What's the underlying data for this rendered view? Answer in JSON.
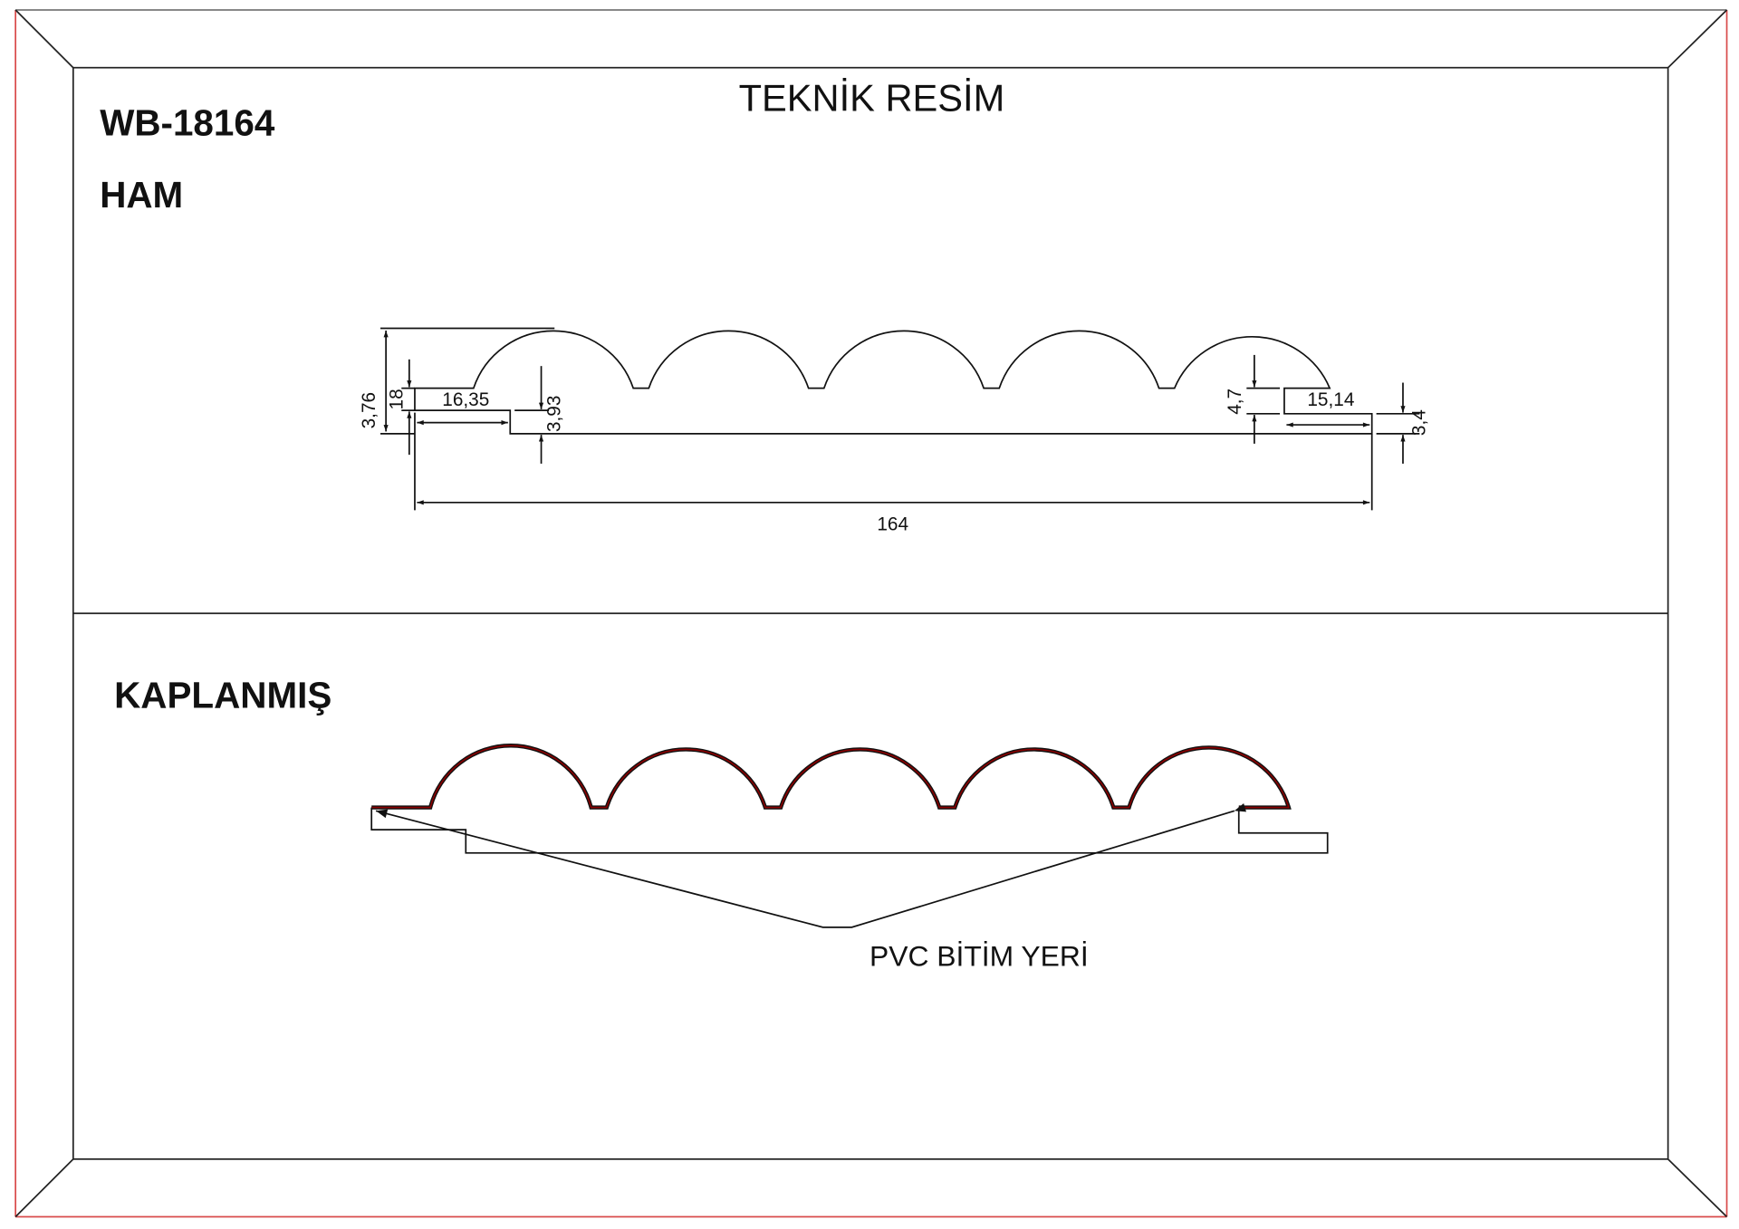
{
  "sheet": {
    "title": "TEKNİK RESİM",
    "product_code": "WB-18164",
    "frame_border_color": "#d94b4b"
  },
  "raw_section": {
    "label": "HAM",
    "dimensions": {
      "total_height": "3,76",
      "left_tongue_thickness": "18",
      "left_tongue_length": "16,35",
      "left_base_height": "3,93",
      "right_groove_height": "4,7",
      "right_lip_length": "15,14",
      "right_lip_height": "3,4",
      "total_width": "164"
    }
  },
  "coated_section": {
    "label": "KAPLANMIŞ",
    "callout": "PVC BİTİM YERİ",
    "coating_color": "#8b0000"
  }
}
